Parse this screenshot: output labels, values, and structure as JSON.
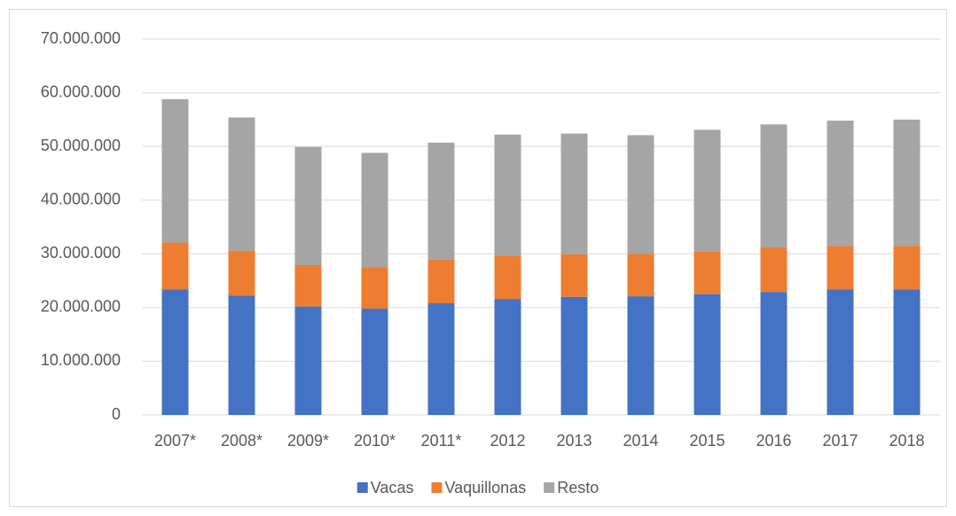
{
  "chart_data": {
    "type": "stacked-bar",
    "categories": [
      "2007*",
      "2008*",
      "2009*",
      "2010*",
      "2011*",
      "2012",
      "2013",
      "2014",
      "2015",
      "2016",
      "2017",
      "2018"
    ],
    "series": [
      {
        "name": "Vacas",
        "color": "#4472c4",
        "values": [
          23400000,
          22200000,
          20200000,
          19800000,
          20800000,
          21600000,
          22000000,
          22100000,
          22500000,
          22900000,
          23400000,
          23400000
        ]
      },
      {
        "name": "Vaquillonas",
        "color": "#ed7d31",
        "values": [
          8700000,
          8400000,
          7700000,
          7700000,
          8100000,
          8100000,
          7900000,
          7900000,
          8000000,
          8300000,
          8100000,
          8100000
        ]
      },
      {
        "name": "Resto",
        "color": "#a5a5a5",
        "values": [
          26700000,
          24800000,
          22000000,
          21300000,
          21800000,
          22500000,
          22500000,
          22100000,
          22600000,
          22900000,
          23300000,
          23500000
        ]
      }
    ],
    "ylim": [
      0,
      70000000
    ],
    "yticks": [
      0,
      {
        "value": 10000000,
        "label": "10.000.000"
      },
      {
        "value": 20000000,
        "label": "20.000.000"
      },
      {
        "value": 30000000,
        "label": "30.000.000"
      },
      {
        "value": 40000000,
        "label": "40.000.000"
      },
      {
        "value": 50000000,
        "label": "50.000.000"
      },
      {
        "value": 60000000,
        "label": "60.000.000"
      },
      {
        "value": 70000000,
        "label": "70.000.000"
      }
    ],
    "grid": true,
    "legend": "bottom"
  }
}
